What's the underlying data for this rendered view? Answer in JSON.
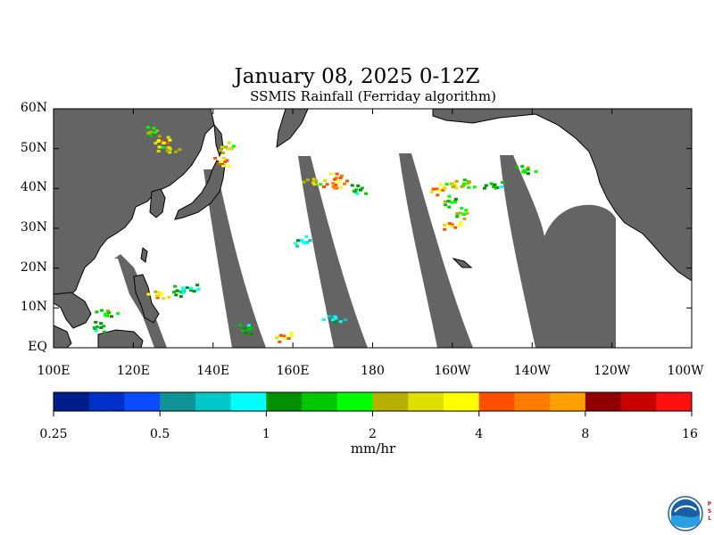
{
  "title": "January 08, 2025 0-12Z",
  "subtitle": "SSMIS Rainfall (Ferriday algorithm)",
  "lat_labels": [
    "60N",
    "50N",
    "40N",
    "30N",
    "20N",
    "10N",
    "EQ"
  ],
  "lon_labels": [
    "100E",
    "120E",
    "140E",
    "160E",
    "180",
    "160W",
    "140W",
    "120W",
    "100W"
  ],
  "colorbar": {
    "tick_labels": [
      "0.25",
      "0.5",
      "1",
      "2",
      "4",
      "8",
      "16"
    ],
    "units": "mm/hr",
    "colors": [
      "#001d8c",
      "#0030c8",
      "#0b4cff",
      "#0e9396",
      "#00c8c8",
      "#00ffff",
      "#009000",
      "#00c800",
      "#00ff00",
      "#b8b000",
      "#e0e000",
      "#ffff00",
      "#ff5000",
      "#ff7c00",
      "#ffa000",
      "#900000",
      "#c80000",
      "#ff1010"
    ]
  },
  "map": {
    "land_color": "#646464",
    "ocean_color": "#ffffff",
    "extent": {
      "lon_min": 100,
      "lon_max": 260,
      "lat_min": 0,
      "lat_max": 60
    },
    "rain_cells": [
      {
        "lon": 124.5,
        "lat": 54.5,
        "mm_hr": 2.5
      },
      {
        "lon": 127.0,
        "lat": 52.0,
        "mm_hr": 4.5
      },
      {
        "lon": 128.5,
        "lat": 50.0,
        "mm_hr": 3.0
      },
      {
        "lon": 142.0,
        "lat": 47.0,
        "mm_hr": 5.0
      },
      {
        "lon": 143.0,
        "lat": 50.5,
        "mm_hr": 3.0
      },
      {
        "lon": 170.0,
        "lat": 41.0,
        "mm_hr": 6.0
      },
      {
        "lon": 171.0,
        "lat": 43.0,
        "mm_hr": 5.5
      },
      {
        "lon": 196.0,
        "lat": 40.0,
        "mm_hr": 5.0
      },
      {
        "lon": 200.0,
        "lat": 41.0,
        "mm_hr": 3.0
      },
      {
        "lon": 203.0,
        "lat": 41.5,
        "mm_hr": 2.5
      },
      {
        "lon": 199.0,
        "lat": 37.0,
        "mm_hr": 2.0
      },
      {
        "lon": 210.0,
        "lat": 41.0,
        "mm_hr": 1.5
      },
      {
        "lon": 218.0,
        "lat": 45.0,
        "mm_hr": 2.0
      },
      {
        "lon": 202.0,
        "lat": 34.0,
        "mm_hr": 2.5
      },
      {
        "lon": 199.5,
        "lat": 31.0,
        "mm_hr": 5.0
      },
      {
        "lon": 126.0,
        "lat": 13.5,
        "mm_hr": 4.0
      },
      {
        "lon": 131.0,
        "lat": 14.5,
        "mm_hr": 1.5
      },
      {
        "lon": 134.0,
        "lat": 15.0,
        "mm_hr": 1.2
      },
      {
        "lon": 113.0,
        "lat": 9.0,
        "mm_hr": 2.0
      },
      {
        "lon": 111.0,
        "lat": 5.5,
        "mm_hr": 1.5
      },
      {
        "lon": 157.5,
        "lat": 3.0,
        "mm_hr": 5.0
      },
      {
        "lon": 170.0,
        "lat": 7.5,
        "mm_hr": 1.0
      },
      {
        "lon": 148.0,
        "lat": 5.0,
        "mm_hr": 1.5
      },
      {
        "lon": 162.0,
        "lat": 27.0,
        "mm_hr": 1.0
      },
      {
        "lon": 165.0,
        "lat": 42.0,
        "mm_hr": 3.0
      },
      {
        "lon": 176.0,
        "lat": 40.0,
        "mm_hr": 1.5
      }
    ]
  }
}
